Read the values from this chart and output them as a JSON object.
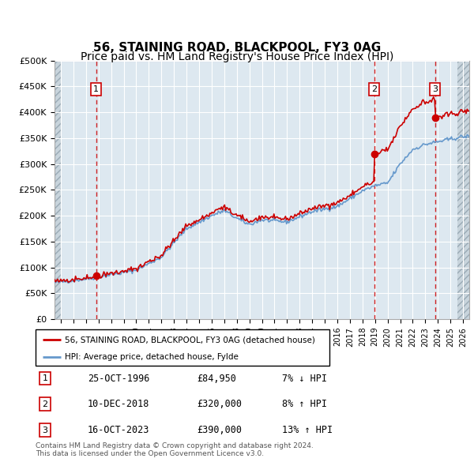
{
  "title": "56, STAINING ROAD, BLACKPOOL, FY3 0AG",
  "subtitle": "Price paid vs. HM Land Registry's House Price Index (HPI)",
  "ylabel_ticks": [
    "£0",
    "£50K",
    "£100K",
    "£150K",
    "£200K",
    "£250K",
    "£300K",
    "£350K",
    "£400K",
    "£450K",
    "£500K"
  ],
  "ytick_values": [
    0,
    50000,
    100000,
    150000,
    200000,
    250000,
    300000,
    350000,
    400000,
    450000,
    500000
  ],
  "ylim": [
    0,
    500000
  ],
  "xlim_start": 1993.5,
  "xlim_end": 2026.5,
  "sale_dates": [
    1996.82,
    2018.94,
    2023.79
  ],
  "sale_prices": [
    84950,
    320000,
    390000
  ],
  "sale_labels": [
    "1",
    "2",
    "3"
  ],
  "hpi_line_color": "#6699cc",
  "price_line_color": "#cc0000",
  "sale_marker_color": "#cc0000",
  "vline_color": "#cc0000",
  "background_color": "#ffffff",
  "plot_bg_color": "#dde8f0",
  "grid_color": "#ffffff",
  "legend_entries": [
    "56, STAINING ROAD, BLACKPOOL, FY3 0AG (detached house)",
    "HPI: Average price, detached house, Fylde"
  ],
  "table_rows": [
    [
      "1",
      "25-OCT-1996",
      "£84,950",
      "7% ↓ HPI"
    ],
    [
      "2",
      "10-DEC-2018",
      "£320,000",
      "8% ↑ HPI"
    ],
    [
      "3",
      "16-OCT-2023",
      "£390,000",
      "13% ↑ HPI"
    ]
  ],
  "footer": "Contains HM Land Registry data © Crown copyright and database right 2024.\nThis data is licensed under the Open Government Licence v3.0.",
  "title_fontsize": 11,
  "subtitle_fontsize": 10
}
